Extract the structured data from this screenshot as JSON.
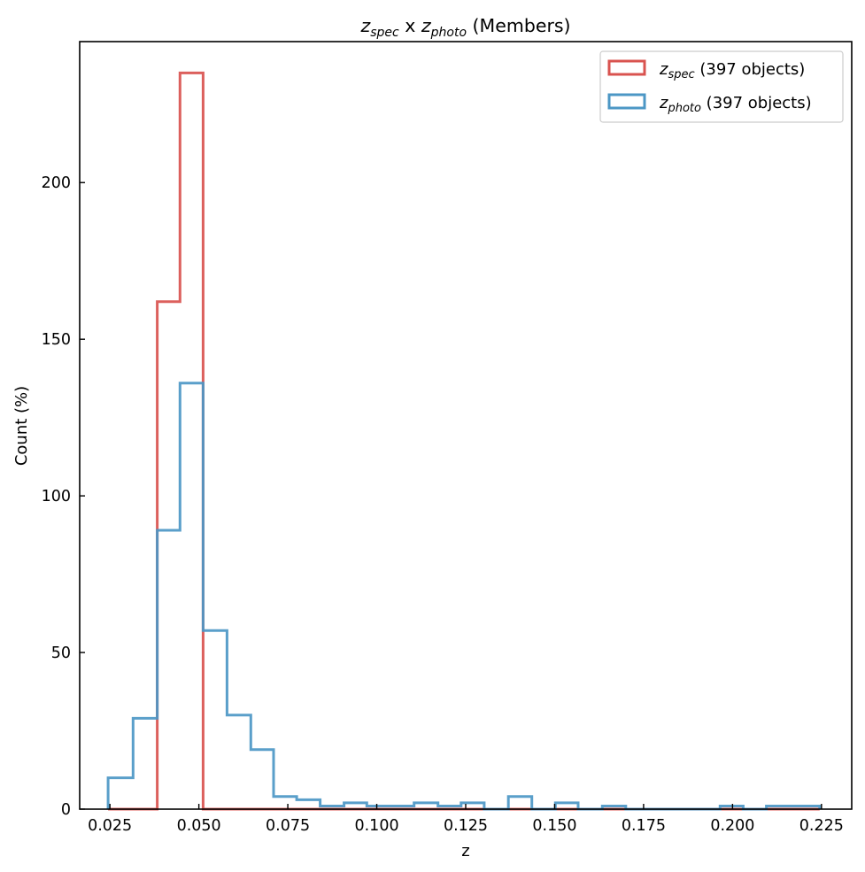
{
  "chart_data": {
    "type": "histogram",
    "title": {
      "prefix": "z",
      "prefix_sub": "spec",
      "mid": " x ",
      "var2": "z",
      "var2_sub": "photo",
      "suffix": " (Members)"
    },
    "xlabel": "z",
    "ylabel": "Count (%)",
    "xlim": [
      0.0165,
      0.2335
    ],
    "ylim": [
      0,
      245
    ],
    "xticks": [
      0.025,
      0.05,
      0.075,
      0.1,
      0.125,
      0.15,
      0.175,
      0.2,
      0.225
    ],
    "xtick_labels": [
      "0.025",
      "0.050",
      "0.075",
      "0.100",
      "0.125",
      "0.150",
      "0.175",
      "0.200",
      "0.225"
    ],
    "yticks": [
      0,
      50,
      100,
      150,
      200
    ],
    "ytick_labels": [
      "0",
      "50",
      "100",
      "150",
      "200"
    ],
    "grid": false,
    "legend_position": "top-right",
    "bin_edges": [
      0.0245,
      0.0315,
      0.0383,
      0.0447,
      0.0512,
      0.0579,
      0.0646,
      0.071,
      0.0775,
      0.0841,
      0.0908,
      0.0972,
      0.104,
      0.1105,
      0.1172,
      0.1237,
      0.1302,
      0.137,
      0.1436,
      0.1502,
      0.1566,
      0.1634,
      0.17,
      0.1767,
      0.1833,
      0.1899,
      0.1965,
      0.203,
      0.2095,
      0.2162,
      0.2245
    ],
    "series": [
      {
        "name": "z_spec",
        "legend": {
          "var": "z",
          "sub": "spec",
          "rest": " (397 objects)"
        },
        "color": "#d9534f",
        "counts": [
          0,
          0,
          162,
          235,
          0,
          0,
          0,
          0,
          0,
          0,
          0,
          0,
          0,
          0,
          0,
          0,
          0,
          0,
          0,
          0,
          0,
          0,
          0,
          0,
          0,
          0,
          0,
          0,
          0,
          0
        ]
      },
      {
        "name": "z_photo",
        "legend": {
          "var": "z",
          "sub": "photo",
          "rest": " (397 objects)"
        },
        "color": "#4c97c5",
        "counts": [
          10,
          29,
          89,
          136,
          57,
          30,
          19,
          4,
          3,
          1,
          2,
          1,
          1,
          2,
          1,
          2,
          0,
          4,
          0,
          2,
          0,
          1,
          0,
          0,
          0,
          0,
          1,
          0,
          1,
          1
        ]
      }
    ]
  }
}
